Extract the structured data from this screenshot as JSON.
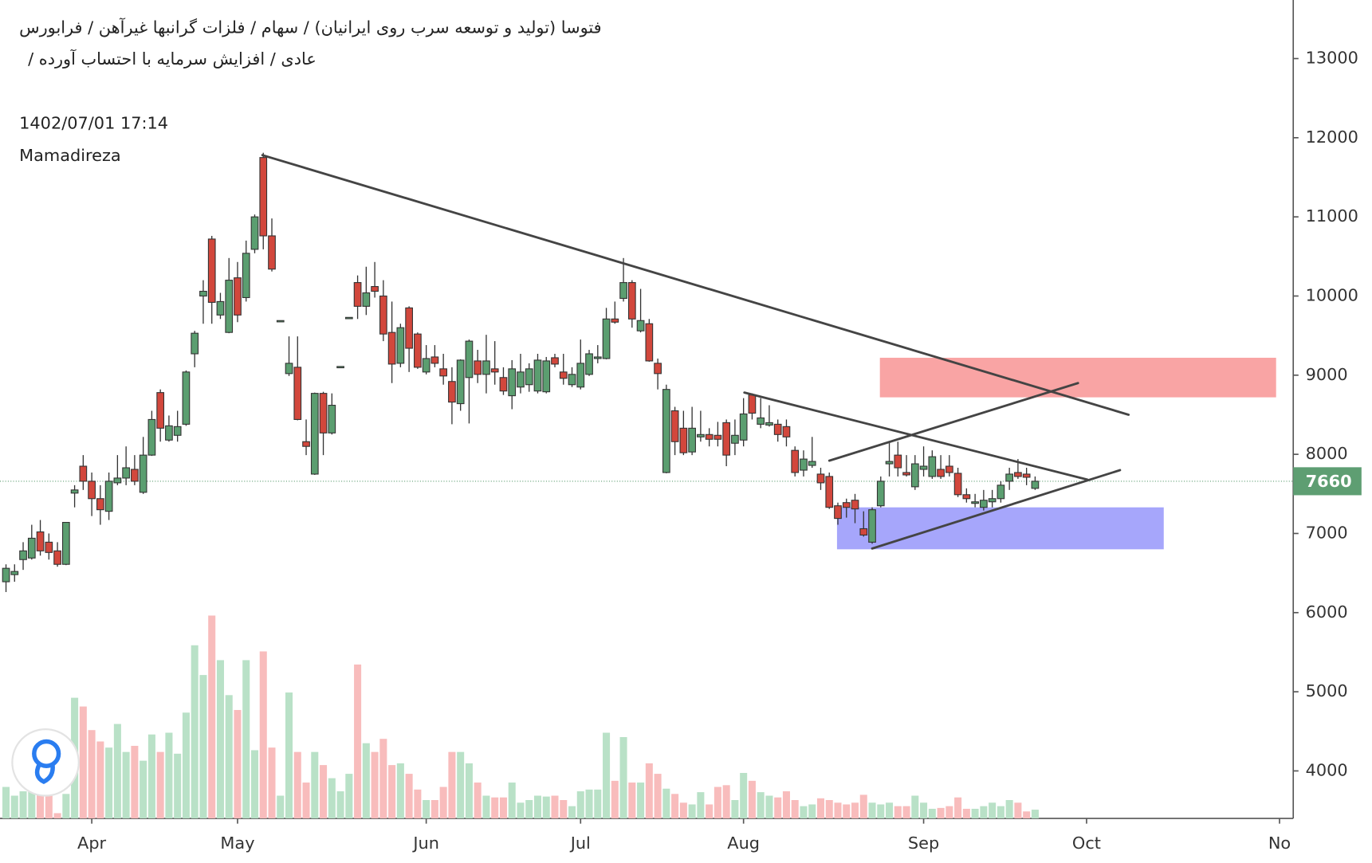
{
  "chart_data": {
    "type": "candlestick",
    "title": "فتوسا (تولید و توسعه سرب روی ایرانیان) / سهام / فلزات گرانبها غیرآهن / فرابورس",
    "subtitle": "عادی / افزایش سرمایه با احتساب آورده /",
    "timestamp": "1402/07/01 17:14",
    "author": "Mamadireza",
    "open": [
      6390,
      6480,
      6670,
      6690,
      7020,
      6890,
      6780,
      6610,
      7510,
      7850,
      7660,
      7440,
      7280,
      7640,
      7700,
      7810,
      7520,
      7990,
      8780,
      8180,
      8240,
      8380,
      9270,
      10000,
      10720,
      9760,
      9540,
      10230,
      9980,
      10590,
      11750,
      10760,
      9680,
      9020,
      9100,
      8160,
      7750,
      8770,
      8270,
      9100,
      9720,
      10170,
      9870,
      10120,
      10000,
      9540,
      9150,
      9850,
      9520,
      9040,
      9230,
      9080,
      8920,
      8640,
      8970,
      9180,
      9010,
      9080,
      8970,
      8740,
      8850,
      8880,
      8800,
      8790,
      9220,
      9040,
      8880,
      8850,
      9010,
      9210,
      9210,
      9710,
      9970,
      10170,
      9560,
      9650,
      9150,
      7770,
      8550,
      8330,
      8030,
      8220,
      8250,
      8240,
      8400,
      8140,
      8180,
      8750,
      8380,
      8370,
      8380,
      8350,
      8050,
      7800,
      7860,
      7750,
      7720,
      7350,
      7390,
      7420,
      7060,
      6890,
      7350,
      7880,
      7990,
      7770,
      7590,
      7810,
      7720,
      7810,
      7850,
      7760,
      7490,
      7380,
      7330,
      7400,
      7440,
      7660,
      7770,
      7750,
      7570
    ],
    "high": [
      6610,
      6610,
      6890,
      7110,
      7170,
      7000,
      6890,
      7140,
      7610,
      7990,
      7770,
      7610,
      7770,
      7990,
      8100,
      7990,
      8220,
      8550,
      8820,
      8490,
      8550,
      9060,
      9560,
      10200,
      10760,
      10040,
      10480,
      10430,
      10700,
      11030,
      11810,
      10980,
      9690,
      9490,
      9490,
      8440,
      8780,
      8790,
      8770,
      9110,
      9730,
      10260,
      10370,
      10430,
      10200,
      9930,
      9650,
      9870,
      9540,
      9380,
      9380,
      9270,
      9100,
      9200,
      9450,
      9320,
      9510,
      9430,
      9100,
      9190,
      9270,
      9150,
      9270,
      9230,
      9270,
      9270,
      9100,
      9450,
      9320,
      9380,
      9850,
      9930,
      10480,
      10200,
      10090,
      9710,
      9210,
      8880,
      8600,
      8550,
      8600,
      8550,
      8330,
      8410,
      8440,
      8440,
      8710,
      8770,
      8710,
      8620,
      8440,
      8440,
      8100,
      8050,
      8220,
      7830,
      7770,
      7390,
      7440,
      7500,
      7280,
      7330,
      7720,
      8160,
      8160,
      7990,
      7990,
      8100,
      8050,
      7990,
      7990,
      7830,
      7570,
      7500,
      7550,
      7550,
      7660,
      7830,
      7940,
      7830,
      7720
    ],
    "low": [
      6260,
      6390,
      6540,
      6670,
      6720,
      6670,
      6580,
      6600,
      7330,
      7550,
      7220,
      7110,
      7170,
      7610,
      7610,
      7610,
      7500,
      7980,
      8160,
      8160,
      8160,
      8360,
      9100,
      9650,
      9650,
      9710,
      9530,
      9670,
      9930,
      10540,
      10590,
      10310,
      9680,
      8990,
      8430,
      7990,
      7740,
      7990,
      8250,
      9100,
      9720,
      9710,
      9760,
      9980,
      9430,
      8900,
      9100,
      9040,
      9080,
      9010,
      9100,
      8880,
      8380,
      8550,
      8390,
      8900,
      8770,
      8880,
      8750,
      8570,
      8770,
      8790,
      8770,
      8770,
      9100,
      8880,
      8850,
      8820,
      8990,
      9150,
      9200,
      9650,
      9930,
      9600,
      9540,
      9170,
      8820,
      7760,
      7990,
      7990,
      7990,
      8160,
      8100,
      8100,
      7850,
      7990,
      8100,
      8440,
      8330,
      8350,
      8160,
      8100,
      7720,
      7720,
      7830,
      7550,
      7310,
      7110,
      7200,
      7130,
      6960,
      6870,
      7330,
      7720,
      7720,
      7720,
      7550,
      7720,
      7690,
      7690,
      7720,
      7460,
      7390,
      7330,
      7290,
      7330,
      7390,
      7550,
      7690,
      7610,
      7550
    ],
    "close": [
      6560,
      6520,
      6780,
      6940,
      6780,
      6760,
      6610,
      7140,
      7550,
      7660,
      7440,
      7300,
      7660,
      7700,
      7830,
      7660,
      7990,
      8440,
      8330,
      8360,
      8350,
      9040,
      9530,
      10060,
      9920,
      9930,
      10200,
      9760,
      10540,
      11000,
      10760,
      10340,
      9690,
      9150,
      8440,
      8100,
      8770,
      8270,
      8620,
      9110,
      9730,
      9870,
      10040,
      10060,
      9520,
      9140,
      9600,
      9340,
      9100,
      9210,
      9150,
      8990,
      8660,
      9190,
      9430,
      9010,
      9180,
      9040,
      8800,
      9080,
      9040,
      9080,
      9190,
      9180,
      9140,
      8960,
      9010,
      9150,
      9270,
      9230,
      9710,
      9670,
      10170,
      9710,
      9690,
      9180,
      9020,
      8820,
      8160,
      8020,
      8330,
      8250,
      8190,
      8190,
      7990,
      8240,
      8510,
      8520,
      8460,
      8400,
      8250,
      8220,
      7770,
      7940,
      7910,
      7640,
      7330,
      7190,
      7330,
      7310,
      6980,
      7300,
      7660,
      7910,
      7830,
      7740,
      7880,
      7850,
      7970,
      7720,
      7770,
      7490,
      7440,
      7400,
      7420,
      7440,
      7610,
      7750,
      7720,
      7710,
      7660
    ],
    "volume": [
      36,
      26,
      31,
      56,
      66,
      26,
      6,
      28,
      138,
      128,
      101,
      88,
      81,
      108,
      76,
      83,
      66,
      96,
      76,
      98,
      74,
      121,
      198,
      164,
      232,
      181,
      141,
      124,
      181,
      78,
      191,
      81,
      26,
      144,
      76,
      41,
      76,
      61,
      46,
      31,
      51,
      176,
      86,
      76,
      91,
      61,
      63,
      51,
      33,
      21,
      21,
      36,
      76,
      76,
      63,
      41,
      26,
      24,
      24,
      41,
      18,
      21,
      26,
      25,
      26,
      21,
      14,
      31,
      33,
      33,
      98,
      43,
      93,
      41,
      41,
      63,
      51,
      34,
      28,
      18,
      16,
      30,
      16,
      36,
      38,
      21,
      52,
      43,
      30,
      26,
      24,
      31,
      21,
      14,
      16,
      23,
      21,
      18,
      16,
      18,
      27,
      18,
      16,
      18,
      14,
      14,
      26,
      18,
      11,
      12,
      14,
      24,
      11,
      11,
      14,
      18,
      14,
      21,
      18,
      8,
      10
    ],
    "volume_ylim": [
      0,
      250
    ],
    "up_color": "#5b9e70",
    "down_color": "#d2473c",
    "volume_up_color": "#b9e1c7",
    "volume_down_color": "#f8bcbc",
    "xlim": [
      -0.7,
      150.1
    ],
    "xticks": [
      {
        "value": 10,
        "label": "Apr"
      },
      {
        "value": 27,
        "label": "May"
      },
      {
        "value": 49,
        "label": "Jun"
      },
      {
        "value": 67,
        "label": "Jul"
      },
      {
        "value": 86,
        "label": "Aug"
      },
      {
        "value": 107,
        "label": "Sep"
      },
      {
        "value": 126,
        "label": "Oct"
      },
      {
        "value": 148.5,
        "label": "No"
      }
    ],
    "ylim": [
      3400,
      13740
    ],
    "yticks": [
      4000,
      5000,
      6000,
      7000,
      8000,
      9000,
      10000,
      11000,
      12000,
      13000
    ],
    "last_price": 7660,
    "last_price_color": "#5e9e72",
    "trend_lines": [
      {
        "points": [
          [
            29.9,
            11780
          ],
          [
            130.9,
            8500
          ]
        ]
      },
      {
        "points": [
          [
            86.1,
            8780
          ],
          [
            126.1,
            7680
          ]
        ]
      },
      {
        "points": [
          [
            96.0,
            7920
          ],
          [
            125.0,
            8900
          ]
        ]
      },
      {
        "points": [
          [
            101.0,
            6810
          ],
          [
            129.9,
            7800
          ]
        ]
      }
    ],
    "line_color": "#444444",
    "zones": [
      {
        "x": [
          101.9,
          148.1
        ],
        "y": [
          8720,
          9220
        ],
        "color": "#f9a4a4"
      },
      {
        "x": [
          96.9,
          135.0
        ],
        "y": [
          6800,
          7330
        ],
        "color": "#a6a6fb"
      }
    ]
  }
}
